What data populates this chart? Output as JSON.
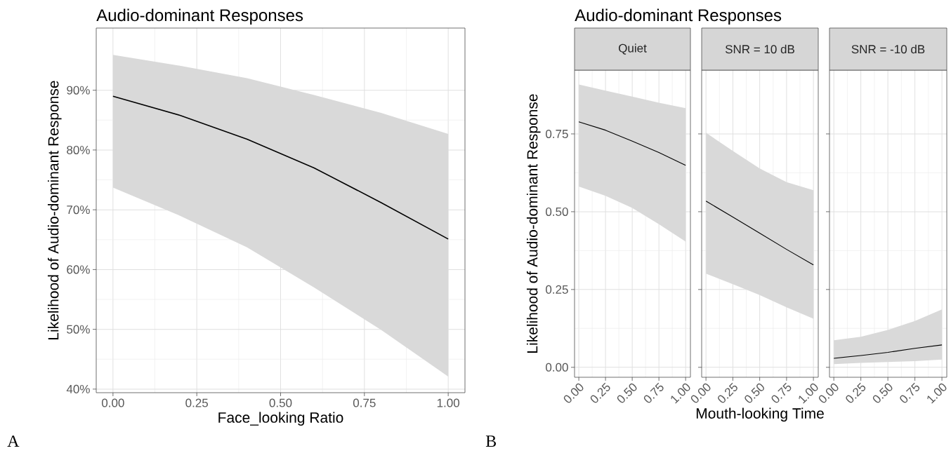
{
  "chart_data": [
    {
      "type": "line",
      "title": "Audio-dominant Responses",
      "xlabel": "Face_looking Ratio",
      "ylabel": "Likelihood of Audio-dominant Response",
      "annotations": [
        "A"
      ],
      "grid": true,
      "x": [
        0,
        0.2,
        0.4,
        0.6,
        0.8,
        1.0
      ],
      "xlim": [
        -0.05,
        1.05
      ],
      "ylim": [
        39.4,
        100.4
      ],
      "xticks": [
        {
          "value": 0,
          "label": "0.00"
        },
        {
          "value": 0.25,
          "label": "0.25"
        },
        {
          "value": 0.5,
          "label": "0.50"
        },
        {
          "value": 0.75,
          "label": "0.75"
        },
        {
          "value": 1,
          "label": "1.00"
        }
      ],
      "yticks": [
        {
          "value": 40,
          "label": "40%"
        },
        {
          "value": 50,
          "label": "50%"
        },
        {
          "value": 60,
          "label": "60%"
        },
        {
          "value": 70,
          "label": "70%"
        },
        {
          "value": 80,
          "label": "80%"
        },
        {
          "value": 90,
          "label": "90%"
        }
      ],
      "series": [
        {
          "color": "#000000",
          "values": [
            89.0,
            85.8,
            81.8,
            77.0,
            71.2,
            65.1
          ],
          "lower": [
            73.7,
            69.0,
            63.7,
            57.0,
            49.9,
            42.1
          ],
          "upper": [
            95.9,
            94.1,
            92.0,
            89.2,
            86.2,
            82.7
          ]
        }
      ]
    },
    {
      "type": "line",
      "title": "Audio-dominant Responses",
      "subtitle": "Quiet",
      "ylabel": "Likelihood of Audio-dominant Response",
      "annotations": [
        "B"
      ],
      "grid": true,
      "x": [
        0,
        0.25,
        0.5,
        0.75,
        1.0
      ],
      "xlim": [
        -0.04,
        1.045
      ],
      "ylim": [
        -0.032,
        0.955
      ],
      "xticks": [
        {
          "value": 0,
          "label": "0.00"
        },
        {
          "value": 0.25,
          "label": "0.25"
        },
        {
          "value": 0.5,
          "label": "0.50"
        },
        {
          "value": 0.75,
          "label": "0.75"
        },
        {
          "value": 1,
          "label": "1.00"
        }
      ],
      "yticks": [
        {
          "value": 0,
          "label": "0.00"
        },
        {
          "value": 0.25,
          "label": "0.25"
        },
        {
          "value": 0.5,
          "label": "0.50"
        },
        {
          "value": 0.75,
          "label": "0.75"
        }
      ],
      "series": [
        {
          "color": "#000000",
          "values": [
            0.789,
            0.762,
            0.727,
            0.69,
            0.649
          ],
          "lower": [
            0.581,
            0.551,
            0.512,
            0.46,
            0.404
          ],
          "upper": [
            0.909,
            0.889,
            0.87,
            0.85,
            0.833
          ]
        }
      ]
    },
    {
      "type": "line",
      "subtitle": "SNR = 10 dB",
      "xlabel": "Mouth-looking Time",
      "tick_labels": "x",
      "grid": true,
      "x": [
        0,
        0.25,
        0.5,
        0.75,
        1.0
      ],
      "xlim": [
        -0.04,
        1.045
      ],
      "ylim": [
        -0.032,
        0.955
      ],
      "xticks": [
        {
          "value": 0,
          "label": "0.00"
        },
        {
          "value": 0.25,
          "label": "0.25"
        },
        {
          "value": 0.5,
          "label": "0.50"
        },
        {
          "value": 0.75,
          "label": "0.75"
        },
        {
          "value": 1,
          "label": "1.00"
        }
      ],
      "yticks": [
        {
          "value": 0,
          "label": null
        },
        {
          "value": 0.25,
          "label": null
        },
        {
          "value": 0.5,
          "label": null
        },
        {
          "value": 0.75,
          "label": null
        }
      ],
      "series": [
        {
          "color": "#000000",
          "values": [
            0.534,
            0.483,
            0.431,
            0.379,
            0.329
          ],
          "lower": [
            0.301,
            0.267,
            0.232,
            0.193,
            0.156
          ],
          "upper": [
            0.754,
            0.695,
            0.639,
            0.595,
            0.569
          ]
        }
      ]
    },
    {
      "type": "line",
      "subtitle": "SNR = -10 dB",
      "tick_labels": "x",
      "grid": true,
      "x": [
        0,
        0.25,
        0.5,
        0.75,
        1.0
      ],
      "xlim": [
        -0.04,
        1.045
      ],
      "ylim": [
        -0.032,
        0.955
      ],
      "xticks": [
        {
          "value": 0,
          "label": "0.00"
        },
        {
          "value": 0.25,
          "label": "0.25"
        },
        {
          "value": 0.5,
          "label": "0.50"
        },
        {
          "value": 0.75,
          "label": "0.75"
        },
        {
          "value": 1,
          "label": "1.00"
        }
      ],
      "yticks": [
        {
          "value": 0,
          "label": null
        },
        {
          "value": 0.25,
          "label": null
        },
        {
          "value": 0.5,
          "label": null
        },
        {
          "value": 0.75,
          "label": null
        }
      ],
      "series": [
        {
          "color": "#000000",
          "values": [
            0.029,
            0.038,
            0.048,
            0.061,
            0.072
          ],
          "lower": [
            0.01,
            0.014,
            0.017,
            0.02,
            0.025
          ],
          "upper": [
            0.087,
            0.098,
            0.12,
            0.149,
            0.186
          ]
        }
      ]
    }
  ]
}
